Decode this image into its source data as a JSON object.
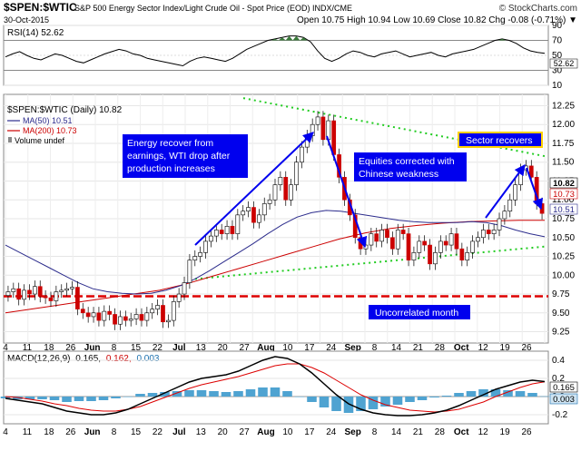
{
  "header": {
    "symbol": "$SPEN:$WTIC",
    "description": "S&P 500 Energy Sector Index/Light Crude Oil - Spot Price (EOD) INDX/CME",
    "brand": "© StockCharts.com",
    "date": "30-Oct-2015",
    "ohlc_text": "Open 10.75  High 10.94  Low 10.69  Close 10.82  Chg -0.08 (-0.71%) ▼"
  },
  "rsi_panel": {
    "label": "RSI(14) 52.62",
    "ticks": [
      "90",
      "70",
      "50",
      "30",
      "10"
    ],
    "value_tag": "52.62"
  },
  "price_panel": {
    "legend": {
      "main": "$SPEN:$WTIC (Daily) 10.82",
      "ma50": "MA(50) 10.51",
      "ma200": "MA(200) 10.73",
      "volume": "Volume undef"
    },
    "y_ticks": [
      "12.25",
      "12.00",
      "11.75",
      "11.50",
      "11.25",
      "11.00",
      "10.75",
      "10.50",
      "10.25",
      "10.00",
      "9.75",
      "9.50",
      "9.25"
    ],
    "price_tags": {
      "close": "10.82",
      "ma200": "10.73",
      "ma50": "10.51"
    },
    "annotations": {
      "energy": [
        "Energy recover from",
        "earnings, WTI drop after",
        "production increases"
      ],
      "equities": [
        "Equities corrected with",
        "Chinese weakness"
      ],
      "sector": "Sector recovers",
      "uncorrelated": "Uncorrelated month"
    }
  },
  "x_axis": {
    "labels": [
      "4",
      "11",
      "18",
      "26",
      "Jun",
      "8",
      "15",
      "22",
      "Jul",
      "13",
      "20",
      "27",
      "Aug",
      "10",
      "17",
      "24",
      "Sep",
      "8",
      "14",
      "21",
      "28",
      "Oct",
      "12",
      "19",
      "26"
    ]
  },
  "macd_panel": {
    "label_prefix": "MACD(12,26,9)",
    "macd": "0.165,",
    "signal": "0.162,",
    "hist": "0.003",
    "y_ticks": [
      "0.4",
      "0.2",
      "0.0",
      "-0.2"
    ],
    "tags": {
      "macd": "0.165",
      "hist": "0.003"
    }
  },
  "colors": {
    "up_candle": "#ffffff",
    "down_candle": "#cc0000",
    "ma50": "#2c2c8c",
    "ma200": "#cc0000",
    "support_line": "#dd0000",
    "trend_dotted": "#22cc22",
    "annotation_box": "#0000ee",
    "arrow": "#0000ee",
    "macd_line": "#000000",
    "signal_line": "#dd0000",
    "histogram": "#4fa3d1"
  },
  "chart_data": [
    {
      "type": "line",
      "title": "RSI(14) 52.62",
      "ylim": [
        10,
        90
      ],
      "series": [
        {
          "name": "RSI(14)",
          "values": [
            48,
            52,
            55,
            50,
            46,
            44,
            48,
            52,
            50,
            46,
            42,
            40,
            44,
            48,
            52,
            55,
            58,
            56,
            52,
            50,
            46,
            44,
            42,
            40,
            38,
            36,
            42,
            46,
            48,
            46,
            44,
            42,
            46,
            52,
            58,
            62,
            66,
            70,
            72,
            74,
            76,
            76,
            74,
            68,
            56,
            46,
            42,
            46,
            52,
            56,
            54,
            50,
            48,
            52,
            54,
            56,
            52,
            48,
            50,
            52,
            54,
            50,
            48,
            52,
            54,
            56,
            58,
            62,
            66,
            70,
            72,
            70,
            66,
            60,
            56,
            54,
            52.62
          ]
        }
      ]
    },
    {
      "type": "line",
      "title": "$SPEN:$WTIC (Daily) 10.82",
      "ylim": [
        9.1,
        12.4
      ],
      "series": [
        {
          "name": "$SPEN:$WTIC (Daily) 10.82",
          "values": [
            9.78,
            9.82,
            9.68,
            9.8,
            9.75,
            9.85,
            9.72,
            9.7,
            9.66,
            9.78,
            9.8,
            9.82,
            9.84,
            9.55,
            9.5,
            9.45,
            9.5,
            9.4,
            9.52,
            9.48,
            9.35,
            9.45,
            9.4,
            9.42,
            9.48,
            9.4,
            9.5,
            9.55,
            9.6,
            9.38,
            9.4,
            9.65,
            9.75,
            9.9,
            10.2,
            10.25,
            10.3,
            10.45,
            10.52,
            10.6,
            10.55,
            10.65,
            10.55,
            10.8,
            10.85,
            10.9,
            10.7,
            10.8,
            10.95,
            11.0,
            11.2,
            11.3,
            11.0,
            11.2,
            11.5,
            11.7,
            11.85,
            12.0,
            12.1,
            11.8,
            12.05,
            11.6,
            11.3,
            11.0,
            10.8,
            10.5,
            10.35,
            10.4,
            10.55,
            10.45,
            10.6,
            10.5,
            10.35,
            10.6,
            10.55,
            10.2,
            10.3,
            10.45,
            10.4,
            10.15,
            10.3,
            10.45,
            10.4,
            10.55,
            10.35,
            10.2,
            10.3,
            10.45,
            10.5,
            10.6,
            10.55,
            10.6,
            10.75,
            10.85,
            11.0,
            11.2,
            11.4,
            11.45,
            11.3,
            10.95,
            10.82
          ]
        },
        {
          "name": "MA(50) 10.51",
          "values": [
            10.4,
            10.3,
            10.2,
            10.1,
            10.0,
            9.9,
            9.82,
            9.78,
            9.76,
            9.75,
            9.76,
            9.8,
            9.86,
            9.95,
            10.06,
            10.18,
            10.3,
            10.42,
            10.55,
            10.67,
            10.77,
            10.83,
            10.86,
            10.85,
            10.82,
            10.79,
            10.76,
            10.73,
            10.71,
            10.7,
            10.7,
            10.7,
            10.71,
            10.7,
            10.66,
            10.6,
            10.55,
            10.51
          ]
        },
        {
          "name": "MA(200) 10.73",
          "values": [
            9.5,
            9.55,
            9.6,
            9.65,
            9.7,
            9.75,
            9.8,
            9.88,
            9.98,
            10.08,
            10.18,
            10.28,
            10.38,
            10.48,
            10.56,
            10.62,
            10.66,
            10.69,
            10.71,
            10.72,
            10.73,
            10.73
          ]
        }
      ],
      "annotations": [
        "Energy recover from earnings, WTI drop after production increases",
        "Equities corrected with Chinese weakness",
        "Sector recovers",
        "Uncorrelated month"
      ]
    },
    {
      "type": "line",
      "title": "MACD(12,26,9) 0.165, 0.162, 0.003",
      "ylim": [
        -0.3,
        0.5
      ],
      "series": [
        {
          "name": "MACD",
          "values": [
            -0.02,
            -0.04,
            -0.06,
            -0.08,
            -0.12,
            -0.16,
            -0.18,
            -0.2,
            -0.2,
            -0.18,
            -0.14,
            -0.08,
            -0.02,
            0.04,
            0.1,
            0.16,
            0.2,
            0.22,
            0.24,
            0.28,
            0.34,
            0.4,
            0.44,
            0.42,
            0.36,
            0.26,
            0.14,
            0.02,
            -0.08,
            -0.14,
            -0.18,
            -0.2,
            -0.21,
            -0.21,
            -0.2,
            -0.18,
            -0.15,
            -0.1,
            -0.04,
            0.02,
            0.08,
            0.12,
            0.16,
            0.18,
            0.165
          ]
        },
        {
          "name": "Signal",
          "values": [
            0.0,
            -0.01,
            -0.03,
            -0.05,
            -0.08,
            -0.1,
            -0.13,
            -0.15,
            -0.16,
            -0.16,
            -0.14,
            -0.11,
            -0.06,
            -0.01,
            0.04,
            0.09,
            0.13,
            0.16,
            0.19,
            0.22,
            0.26,
            0.3,
            0.34,
            0.36,
            0.36,
            0.32,
            0.26,
            0.18,
            0.1,
            0.02,
            -0.04,
            -0.09,
            -0.12,
            -0.15,
            -0.16,
            -0.17,
            -0.16,
            -0.14,
            -0.1,
            -0.06,
            0.0,
            0.05,
            0.1,
            0.14,
            0.162
          ]
        }
      ]
    }
  ]
}
